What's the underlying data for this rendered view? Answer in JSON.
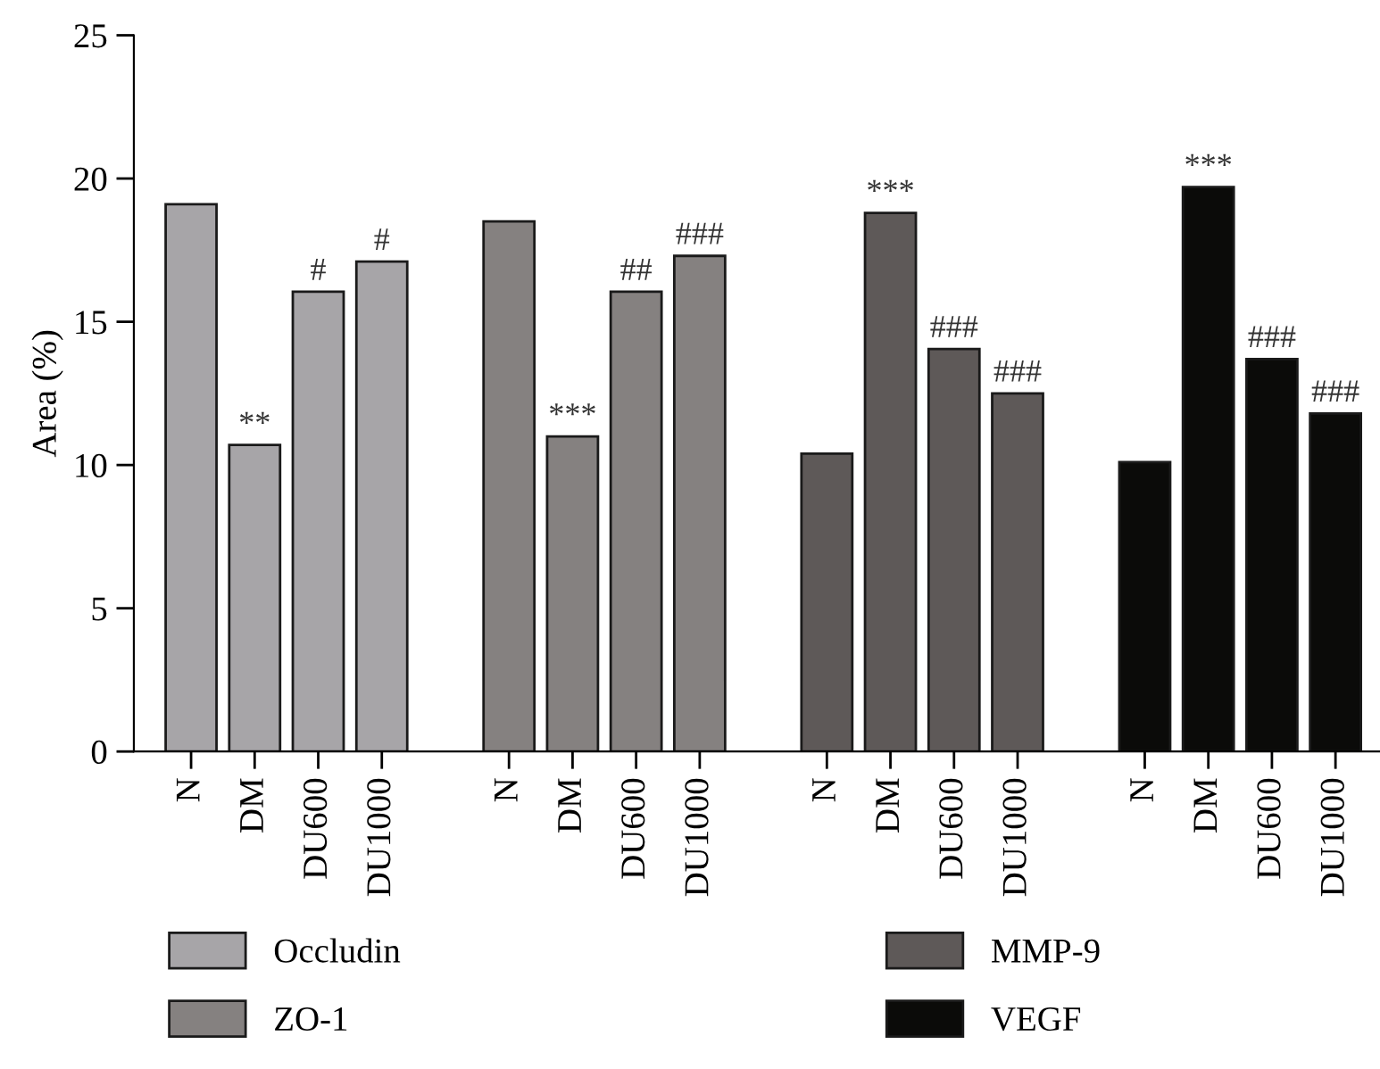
{
  "chart_data": {
    "type": "bar",
    "ylabel": "Area (%)",
    "categories": [
      "N",
      "DM",
      "DU600",
      "DU1000",
      null,
      "N",
      "DM",
      "DU600",
      "DU1000",
      null,
      "N",
      "DM",
      "DU600",
      "DU1000",
      null,
      "N",
      "DM",
      "DU600",
      "DU1000"
    ],
    "series": [
      {
        "name": "Occludin",
        "color": "#a7a5a8",
        "values": [
          19.1,
          10.7,
          16.05,
          17.1,
          null,
          null,
          null,
          null,
          null,
          null,
          null,
          null,
          null,
          null,
          null,
          null,
          null,
          null,
          null
        ],
        "value_labels": [
          null,
          "**",
          "#",
          "#",
          null,
          null,
          null,
          null,
          null,
          null,
          null,
          null,
          null,
          null,
          null,
          null,
          null,
          null,
          null
        ]
      },
      {
        "name": "ZO-1",
        "color": "#858180",
        "values": [
          null,
          null,
          null,
          null,
          null,
          18.5,
          11.0,
          16.05,
          17.3,
          null,
          null,
          null,
          null,
          null,
          null,
          null,
          null,
          null,
          null
        ],
        "value_labels": [
          null,
          null,
          null,
          null,
          null,
          null,
          "***",
          "##",
          "###",
          null,
          null,
          null,
          null,
          null,
          null,
          null,
          null,
          null,
          null
        ]
      },
      {
        "name": "MMP-9",
        "color": "#5e5958",
        "values": [
          null,
          null,
          null,
          null,
          null,
          null,
          null,
          null,
          null,
          null,
          10.4,
          18.8,
          14.05,
          12.5,
          null,
          null,
          null,
          null,
          null
        ],
        "value_labels": [
          null,
          null,
          null,
          null,
          null,
          null,
          null,
          null,
          null,
          null,
          null,
          "***",
          "###",
          "###",
          null,
          null,
          null,
          null,
          null
        ]
      },
      {
        "name": "VEGF",
        "color": "#0b0b09",
        "values": [
          null,
          null,
          null,
          null,
          null,
          null,
          null,
          null,
          null,
          null,
          null,
          null,
          null,
          null,
          null,
          10.1,
          19.7,
          13.7,
          11.8
        ],
        "value_labels": [
          null,
          null,
          null,
          null,
          null,
          null,
          null,
          null,
          null,
          null,
          null,
          null,
          null,
          null,
          null,
          null,
          "***",
          "###",
          "###"
        ]
      }
    ],
    "ylim": [
      0,
      25
    ],
    "yticks": [
      0,
      5,
      10,
      15,
      20,
      25
    ],
    "grid": false,
    "legend": "bottom"
  }
}
